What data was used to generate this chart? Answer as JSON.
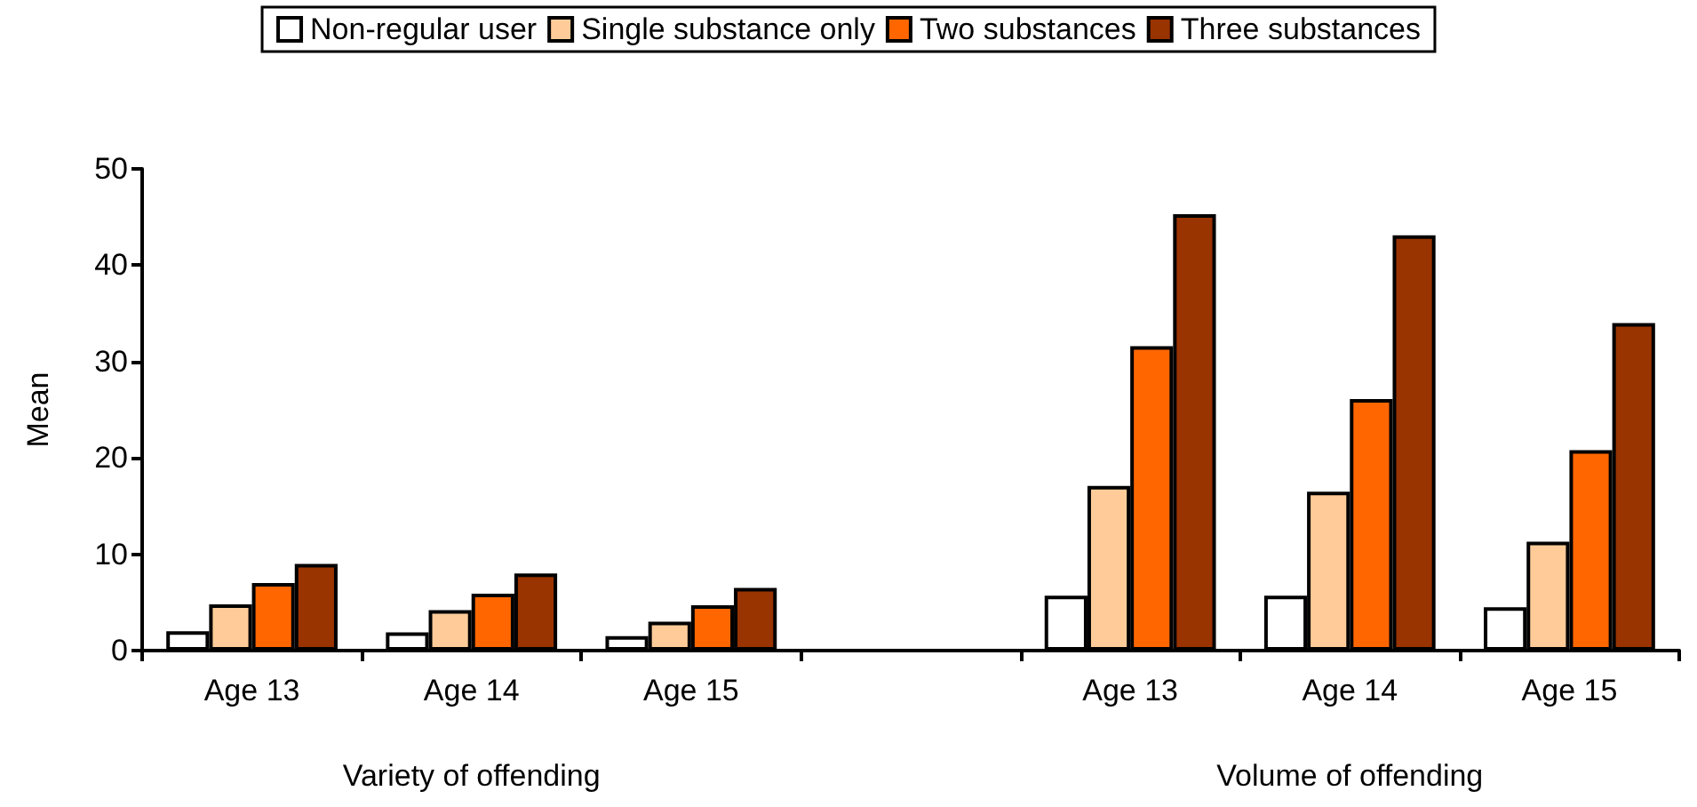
{
  "chart_data": {
    "type": "bar",
    "ylabel": "Mean",
    "categories": [
      "Age 13",
      "Age 14",
      "Age 15",
      null,
      "Age 13",
      "Age 14",
      "Age 15"
    ],
    "series": [
      {
        "name": "Non-regular user",
        "color": "#ffffff",
        "values": [
          2.0,
          1.9,
          1.5,
          null,
          5.7,
          5.7,
          4.5
        ]
      },
      {
        "name": "Single substance only",
        "color": "#ffcc99",
        "values": [
          4.8,
          4.2,
          3.0,
          null,
          17.1,
          16.5,
          11.3
        ]
      },
      {
        "name": "Two substances",
        "color": "#ff6600",
        "values": [
          7.0,
          5.9,
          4.7,
          null,
          31.6,
          26.1,
          20.8
        ]
      },
      {
        "name": "Three substances",
        "color": "#993300",
        "values": [
          9.0,
          8.0,
          6.5,
          null,
          45.3,
          43.1,
          34.0
        ]
      }
    ],
    "annotations": [
      "Variety of offending",
      "Volume of offending"
    ],
    "ylim": [
      0,
      50
    ],
    "yticks": [
      0,
      10,
      20,
      30,
      40,
      50
    ],
    "grid": false,
    "legend": "top"
  }
}
